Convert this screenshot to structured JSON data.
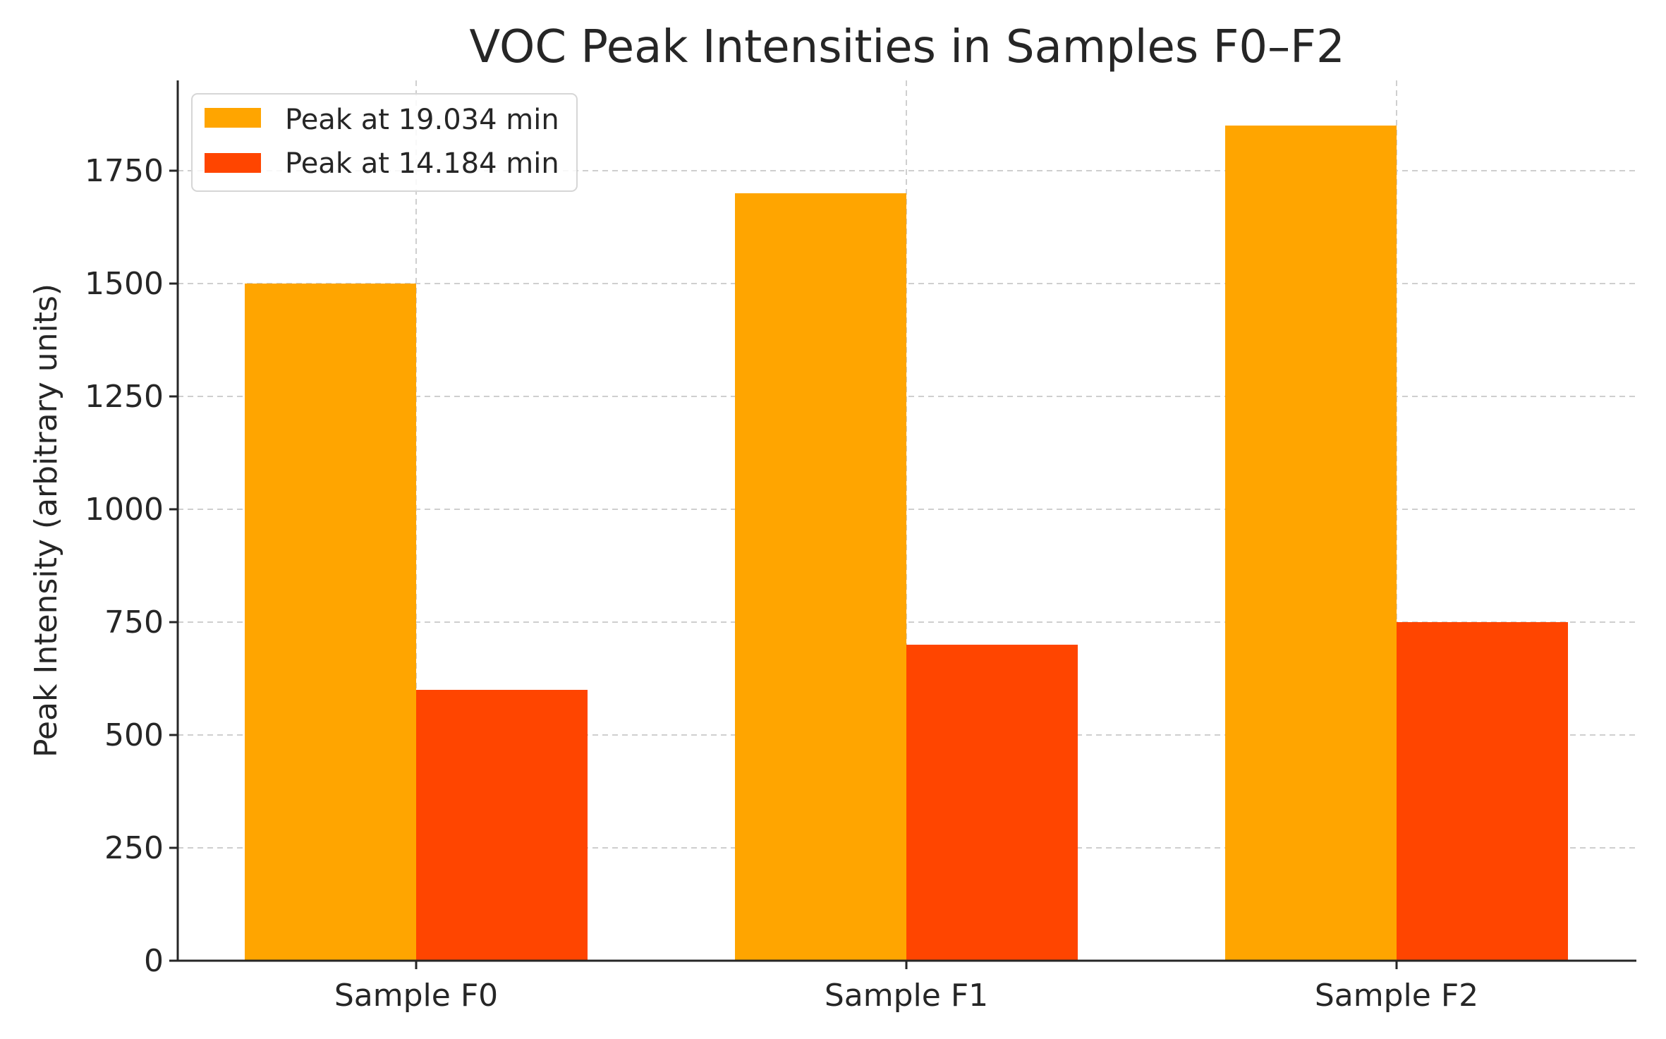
{
  "chart_data": {
    "type": "bar",
    "title": "VOC Peak Intensities in Samples F0–F2",
    "xlabel": "",
    "ylabel": "Peak Intensity (arbitrary units)",
    "categories": [
      "Sample F0",
      "Sample F1",
      "Sample F2"
    ],
    "series": [
      {
        "name": "Peak at 19.034 min",
        "color": "#FFA500",
        "values": [
          1500,
          1700,
          1850
        ]
      },
      {
        "name": "Peak at 14.184 min",
        "color": "#FF4500",
        "values": [
          600,
          700,
          750
        ]
      }
    ],
    "ylim": [
      0,
      1950
    ],
    "yticks": [
      0,
      250,
      500,
      750,
      1000,
      1250,
      1500,
      1750
    ],
    "ytick_labels": [
      "0",
      "250",
      "500",
      "750",
      "1000",
      "1250",
      "1500",
      "1750"
    ],
    "grid": true,
    "legend_position": "top-left"
  }
}
